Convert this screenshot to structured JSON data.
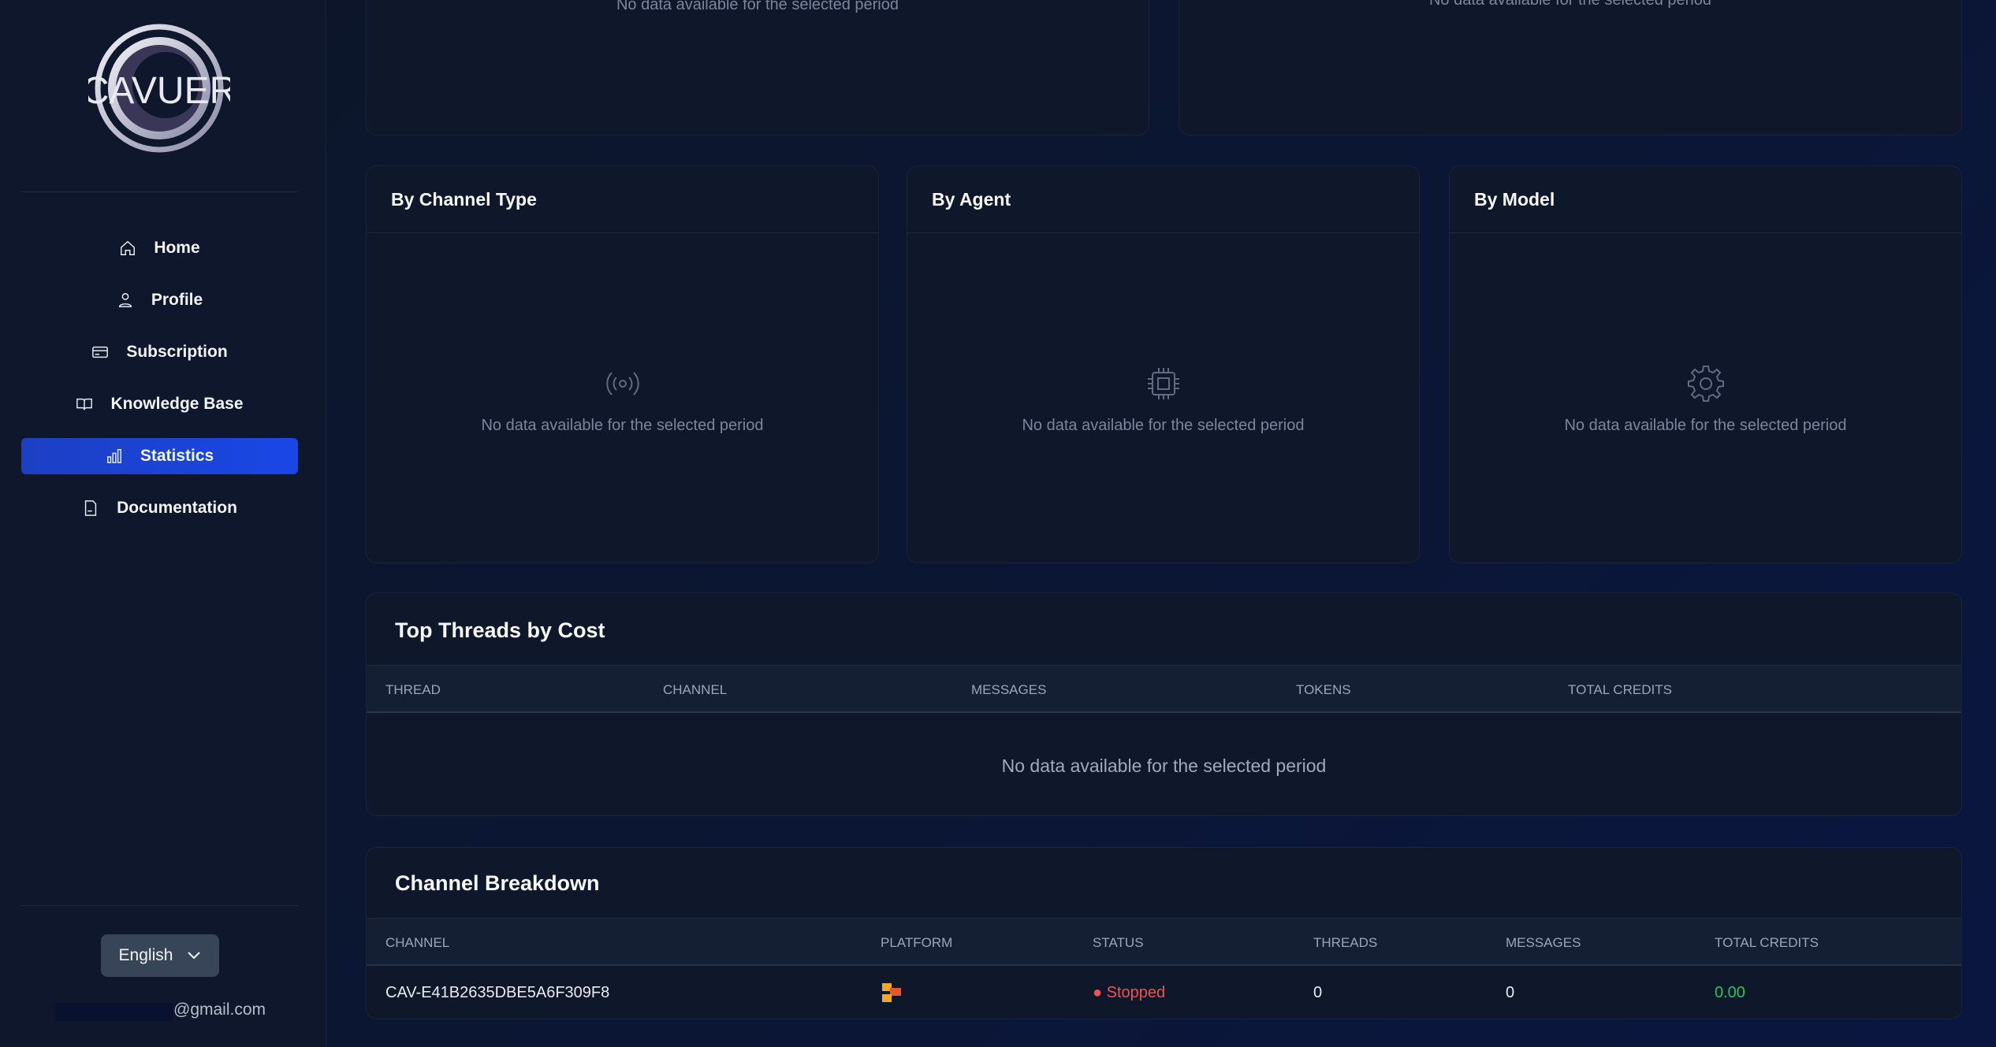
{
  "sidebar": {
    "logo_text": "CAVUER",
    "items": [
      {
        "label": "Home",
        "icon": "home-icon"
      },
      {
        "label": "Profile",
        "icon": "user-icon"
      },
      {
        "label": "Subscription",
        "icon": "credit-card-icon"
      },
      {
        "label": "Knowledge Base",
        "icon": "book-icon"
      },
      {
        "label": "Statistics",
        "icon": "bar-chart-icon",
        "active": true
      },
      {
        "label": "Documentation",
        "icon": "document-icon"
      }
    ],
    "language": "English",
    "email_suffix": "@gmail.com"
  },
  "colors": {
    "accent": "#1947e6",
    "stopped": "#f05252",
    "credits": "#22c55e"
  },
  "top_cards": [
    {
      "empty": "No data available for the selected period"
    },
    {
      "empty": "No data available for the selected period"
    }
  ],
  "breakdown_cards": [
    {
      "title": "By Channel Type",
      "icon": "broadcast-icon",
      "empty": "No data available for the selected period"
    },
    {
      "title": "By Agent",
      "icon": "cpu-icon",
      "empty": "No data available for the selected period"
    },
    {
      "title": "By Model",
      "icon": "gear-icon",
      "empty": "No data available for the selected period"
    }
  ],
  "top_threads": {
    "title": "Top Threads by Cost",
    "columns": [
      "THREAD",
      "CHANNEL",
      "MESSAGES",
      "TOKENS",
      "TOTAL CREDITS"
    ],
    "empty": "No data available for the selected period"
  },
  "channel_breakdown": {
    "title": "Channel Breakdown",
    "columns": [
      "CHANNEL",
      "PLATFORM",
      "STATUS",
      "THREADS",
      "MESSAGES",
      "TOTAL CREDITS"
    ],
    "rows": [
      {
        "channel": "CAV-E41B2635DBE5A6F309F8",
        "platform_icon": "platform-logo-icon",
        "status": "Stopped",
        "threads": "0",
        "messages": "0",
        "total_credits": "0.00"
      }
    ]
  }
}
